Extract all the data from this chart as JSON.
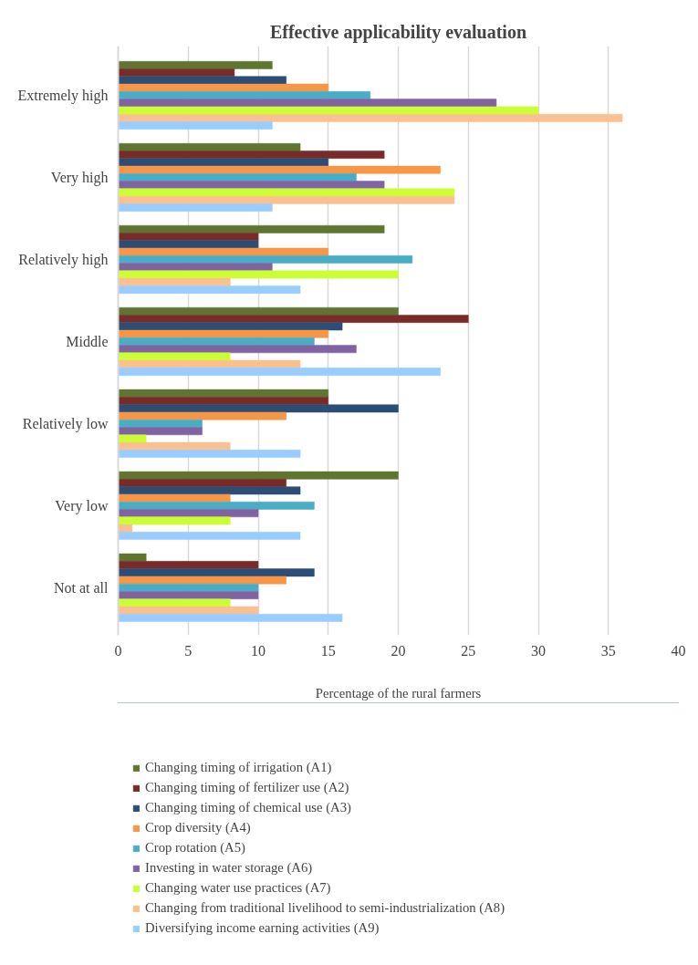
{
  "chart_data": {
    "type": "bar",
    "orientation": "horizontal",
    "title": "Effective applicability evaluation",
    "xlabel": "Percentage of the rural farmers",
    "categories": [
      "Extremely high",
      "Very high",
      "Relatively high",
      "Middle",
      "Relatively low",
      "Very low",
      "Not at all"
    ],
    "series": [
      {
        "name": "Changing timing of irrigation (A1)",
        "color": "#5f7530",
        "values": [
          11,
          13,
          19,
          20,
          15,
          20,
          2
        ]
      },
      {
        "name": "Changing timing of fertilizer use (A2)",
        "color": "#772c2a",
        "values": [
          8.3,
          19,
          10,
          25,
          15,
          12,
          10
        ]
      },
      {
        "name": "Changing timing of chemical use (A3)",
        "color": "#2c4d75",
        "values": [
          12,
          15,
          10,
          16,
          20,
          13,
          14
        ]
      },
      {
        "name": "Crop diversity (A4)",
        "color": "#f79646",
        "values": [
          15,
          23,
          15,
          15,
          12,
          8,
          12
        ]
      },
      {
        "name": "Crop rotation (A5)",
        "color": "#4bacc6",
        "values": [
          18,
          17,
          21,
          14,
          6,
          14,
          10
        ]
      },
      {
        "name": "Investing in water storage (A6)",
        "color": "#8064a2",
        "values": [
          27,
          19,
          11,
          17,
          6,
          10,
          10
        ]
      },
      {
        "name": "Changing water use practices (A7)",
        "color": "#ccff33",
        "values": [
          30,
          24,
          20,
          8,
          2,
          8,
          8
        ]
      },
      {
        "name": "Changing from traditional livelihood to semi-industrialization (A8)",
        "color": "#fac090",
        "values": [
          36,
          24,
          8,
          13,
          8,
          1,
          10
        ]
      },
      {
        "name": "Diversifying income earning activities (A9)",
        "color": "#99ccff",
        "values": [
          11,
          11,
          13,
          23,
          13,
          13,
          16
        ]
      }
    ],
    "xlim": [
      0,
      40
    ],
    "xticks": [
      0,
      5,
      10,
      15,
      20,
      25,
      30,
      35,
      40
    ],
    "grid": "x",
    "legend": "bottom"
  }
}
